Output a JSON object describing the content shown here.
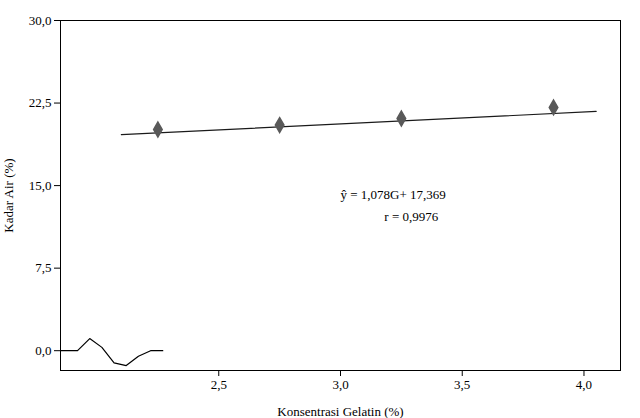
{
  "chart_data": {
    "type": "scatter",
    "xlabel": "Konsentrasi Gelatin (%)",
    "ylabel": "Kadar Air (%)",
    "x": [
      2.25,
      2.75,
      3.25,
      3.875
    ],
    "values": [
      20.1,
      20.5,
      21.1,
      22.1
    ],
    "color": "#595959",
    "marker": "diamond",
    "regression": {
      "x": [
        2.1,
        4.05
      ],
      "values": [
        19.6328,
        21.7349
      ],
      "color": "#1a1a1a"
    },
    "axis_break": {
      "x": [
        1.85,
        1.92,
        1.97,
        2.02,
        2.07,
        2.12,
        2.17,
        2.22,
        2.27
      ],
      "y": [
        0.0,
        0.0,
        1.1,
        0.3,
        -1.1,
        -1.35,
        -0.5,
        0.0,
        0.0
      ],
      "color": "black"
    },
    "annotations": [
      {
        "text": "ŷ = 1,078G+ 17,369",
        "x": 3.0,
        "y": 14.2
      },
      {
        "text": "r = 0,9976",
        "x": 3.18,
        "y": 12.2
      }
    ],
    "xlim": [
      1.85,
      4.15
    ],
    "ylim": [
      -1.8,
      30.0
    ],
    "xticks": [
      {
        "value": 2.5,
        "label": "2,5"
      },
      {
        "value": 3.0,
        "label": "3,0"
      },
      {
        "value": 3.5,
        "label": "3,5"
      },
      {
        "value": 4.0,
        "label": "4,0"
      }
    ],
    "yticks": [
      {
        "value": 0.0,
        "label": "0,0"
      },
      {
        "value": 7.5,
        "label": "7,5"
      },
      {
        "value": 15.0,
        "label": "15,0"
      },
      {
        "value": 22.5,
        "label": "22,5"
      },
      {
        "value": 30.0,
        "label": "30,0"
      }
    ],
    "grid": false
  }
}
